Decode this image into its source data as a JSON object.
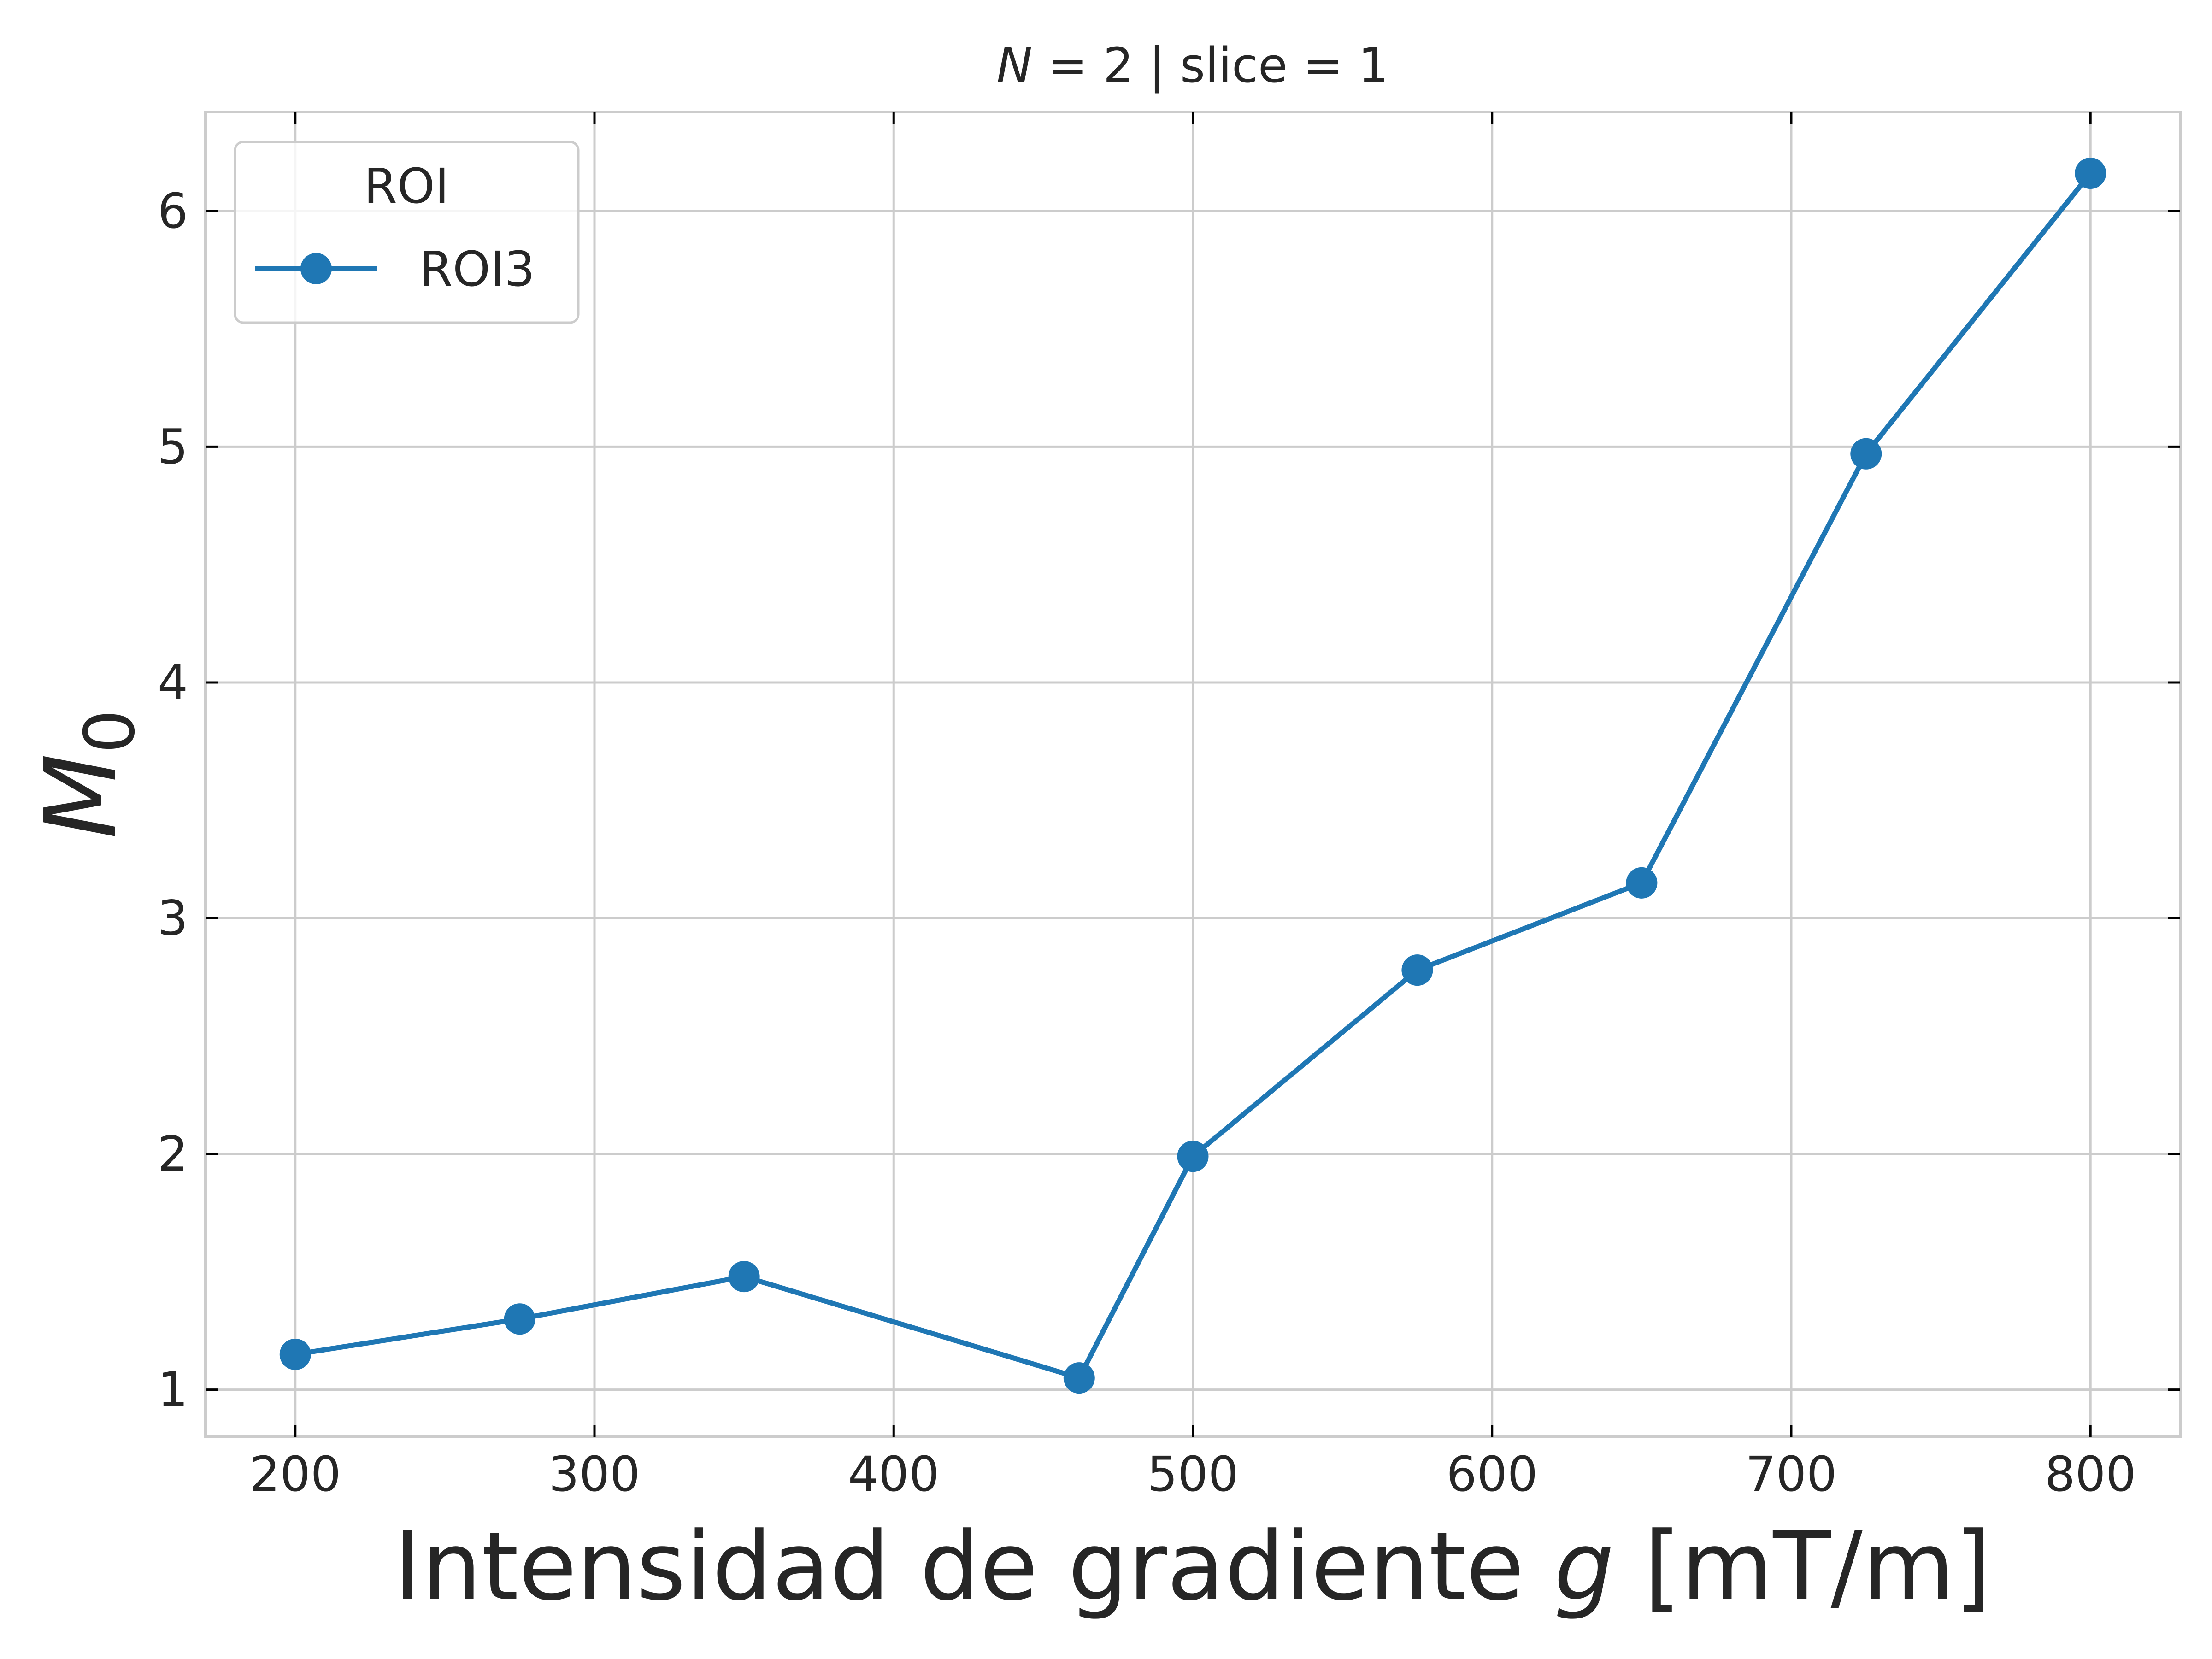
{
  "chart_data": {
    "type": "line",
    "title_left": "N",
    "title_rest": " = 2 | slice = 1",
    "xlabel_pre": "Intensidad de gradiente ",
    "xlabel_var": "g",
    "xlabel_post": " [mT/m]",
    "ylabel_main": "M",
    "ylabel_sub": "0",
    "xlim": [
      170,
      830
    ],
    "ylim": [
      0.8,
      6.42
    ],
    "xticks": [
      200,
      300,
      400,
      500,
      600,
      700,
      800
    ],
    "yticks": [
      1,
      2,
      3,
      4,
      5,
      6
    ],
    "grid": true,
    "legend": {
      "title": "ROI",
      "position": "top-left"
    },
    "series": [
      {
        "name": "ROI3",
        "color": "#1f77b4",
        "x": [
          200,
          275,
          350,
          462,
          500,
          575,
          650,
          725,
          800
        ],
        "y": [
          1.15,
          1.3,
          1.48,
          1.05,
          1.99,
          2.78,
          3.15,
          4.97,
          6.16
        ]
      }
    ]
  },
  "colors": {
    "grid": "#cccccc",
    "spine": "#cccccc",
    "text": "#262626",
    "tick": "#000000"
  }
}
